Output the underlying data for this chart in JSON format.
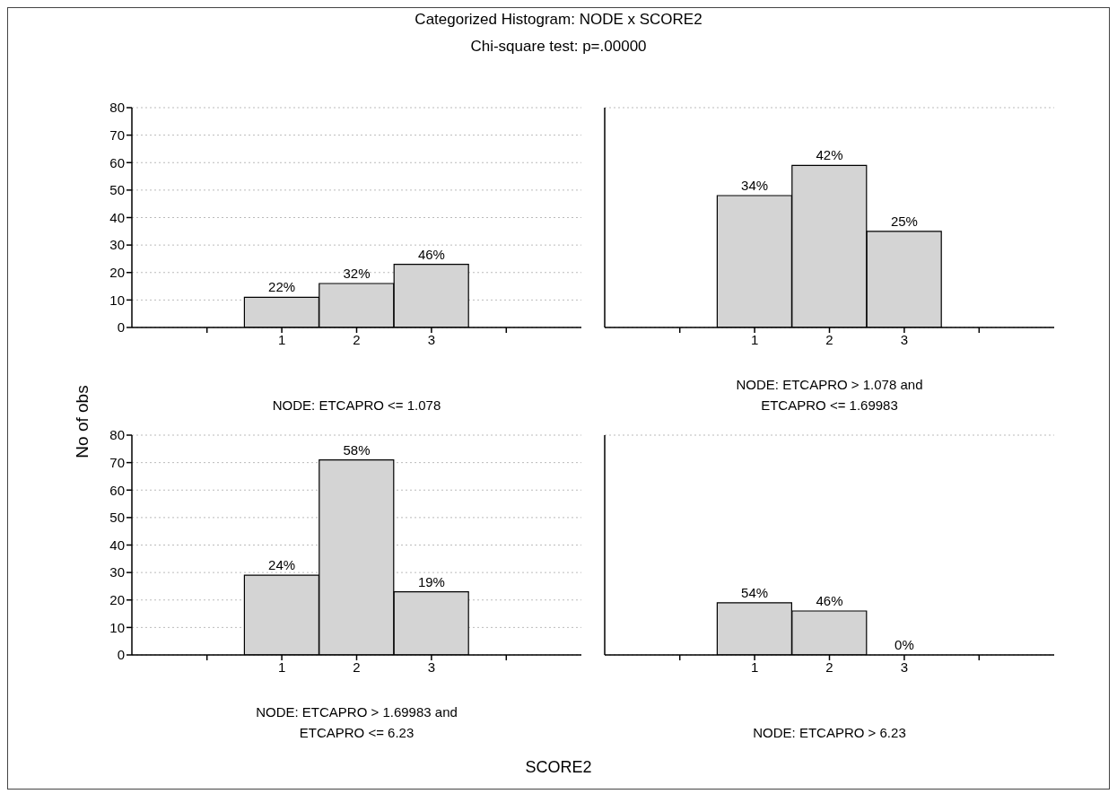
{
  "chart_data": [
    {
      "type": "bar",
      "title": "Categorized Histogram: NODE x SCORE2",
      "subtitle": "Chi-square test: p=.00000",
      "ylabel": "No of obs",
      "xlabel": "NODE: ETCAPRO <= 1.078",
      "categories": [
        null,
        "1",
        "2",
        "3",
        null
      ],
      "values": [
        null,
        11,
        16,
        23,
        null
      ],
      "color": "#d4d4d4",
      "ylim": [
        0,
        80
      ],
      "yticks": [
        0,
        10,
        20,
        30,
        40,
        50,
        60,
        70,
        80
      ],
      "grid": "y",
      "annotations": [
        "SCORE2",
        {
          "text": "22%",
          "x": "1",
          "y": 11
        },
        {
          "text": "32%",
          "x": "2",
          "y": 16
        },
        {
          "text": "46%",
          "x": "3",
          "y": 23
        }
      ]
    },
    {
      "type": "bar",
      "xlabel": "NODE: ETCAPRO > 1.078  and\nETCAPRO <= 1.69983",
      "categories": [
        null,
        "1",
        "2",
        "3",
        null
      ],
      "values": [
        null,
        48,
        59,
        35,
        null
      ],
      "color": "#d4d4d4",
      "ylim": [
        0,
        80
      ],
      "yticks": [
        0,
        10,
        20,
        30,
        40,
        50,
        60,
        70,
        80
      ],
      "grid": "y",
      "tick_labels": "x",
      "annotations": [
        {
          "text": "34%",
          "x": "1",
          "y": 48
        },
        {
          "text": "42%",
          "x": "2",
          "y": 59
        },
        {
          "text": "25%",
          "x": "3",
          "y": 35
        }
      ]
    },
    {
      "type": "bar",
      "xlabel": "NODE: ETCAPRO > 1.69983  and\nETCAPRO <= 6.23",
      "categories": [
        null,
        "1",
        "2",
        "3",
        null
      ],
      "values": [
        null,
        29,
        71,
        23,
        null
      ],
      "color": "#d4d4d4",
      "ylim": [
        0,
        80
      ],
      "yticks": [
        0,
        10,
        20,
        30,
        40,
        50,
        60,
        70,
        80
      ],
      "grid": "y",
      "annotations": [
        {
          "text": "24%",
          "x": "1",
          "y": 29
        },
        {
          "text": "58%",
          "x": "2",
          "y": 71
        },
        {
          "text": "19%",
          "x": "3",
          "y": 23
        }
      ]
    },
    {
      "type": "bar",
      "xlabel": "NODE: ETCAPRO > 6.23",
      "categories": [
        null,
        "1",
        "2",
        "3",
        null
      ],
      "values": [
        null,
        19,
        16,
        0,
        null
      ],
      "color": "#d4d4d4",
      "ylim": [
        0,
        80
      ],
      "yticks": [
        0,
        10,
        20,
        30,
        40,
        50,
        60,
        70,
        80
      ],
      "grid": "y",
      "tick_labels": "x",
      "annotations": [
        {
          "text": "54%",
          "x": "1",
          "y": 19
        },
        {
          "text": "46%",
          "x": "2",
          "y": 16
        },
        {
          "text": "0%",
          "x": "3",
          "y": 0
        }
      ]
    }
  ]
}
